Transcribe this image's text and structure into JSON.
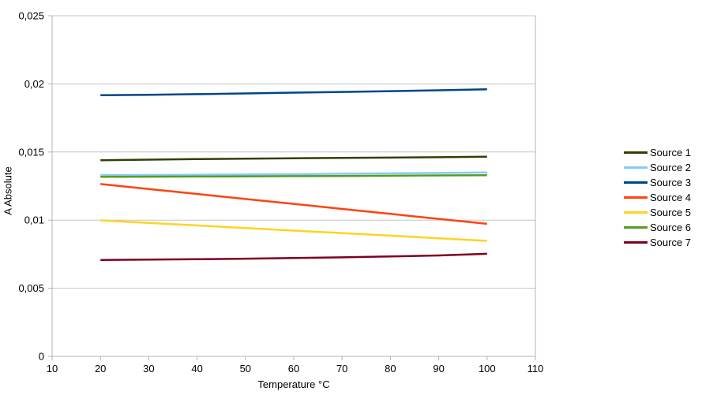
{
  "chart_data": {
    "type": "line",
    "xlabel": "Temperature °C",
    "ylabel": "A Absolute",
    "xlim": [
      10,
      110
    ],
    "ylim": [
      0,
      0.025
    ],
    "x_ticks": {
      "values": [
        10,
        20,
        30,
        40,
        50,
        60,
        70,
        80,
        90,
        100,
        110
      ],
      "labels": [
        "10",
        "20",
        "30",
        "40",
        "50",
        "60",
        "70",
        "80",
        "90",
        "100",
        "110"
      ]
    },
    "y_ticks": {
      "values": [
        0,
        0.005,
        0.01,
        0.015,
        0.02,
        0.025
      ],
      "labels": [
        "0",
        "0,005",
        "0,01",
        "0,015",
        "0,02",
        "0,025"
      ]
    },
    "grid": "horizontal-only",
    "legend_position": "right",
    "decimal_separator": ",",
    "x": [
      20,
      30,
      40,
      50,
      60,
      70,
      80,
      90,
      100
    ],
    "series": [
      {
        "name": "Source 1",
        "color": "#314004",
        "values": [
          0.0144,
          0.01444,
          0.01448,
          0.01451,
          0.01454,
          0.01457,
          0.01459,
          0.01462,
          0.01466
        ]
      },
      {
        "name": "Source 2",
        "color": "#83caff",
        "values": [
          0.0133,
          0.01331,
          0.01333,
          0.01335,
          0.01337,
          0.0134,
          0.01343,
          0.01346,
          0.0135
        ]
      },
      {
        "name": "Source 3",
        "color": "#004586",
        "values": [
          0.01917,
          0.0192,
          0.01925,
          0.0193,
          0.01936,
          0.01941,
          0.01947,
          0.01953,
          0.0196
        ]
      },
      {
        "name": "Source 4",
        "color": "#ff420e",
        "values": [
          0.01265,
          0.01228,
          0.01192,
          0.01155,
          0.01119,
          0.01082,
          0.01046,
          0.01009,
          0.00973
        ]
      },
      {
        "name": "Source 5",
        "color": "#ffd320",
        "values": [
          0.00998,
          0.00979,
          0.00961,
          0.00942,
          0.00923,
          0.00905,
          0.00886,
          0.00867,
          0.00848
        ]
      },
      {
        "name": "Source 6",
        "color": "#579d1c",
        "values": [
          0.01318,
          0.01319,
          0.0132,
          0.01321,
          0.01323,
          0.01324,
          0.01326,
          0.01328,
          0.0133
        ]
      },
      {
        "name": "Source 7",
        "color": "#7e0021",
        "values": [
          0.00708,
          0.0071,
          0.00713,
          0.00717,
          0.00722,
          0.00727,
          0.00733,
          0.00741,
          0.00753
        ]
      }
    ],
    "colors": {
      "gridline": "#c6c6c6",
      "axis": "#b3b3b3",
      "text": "#000000",
      "background": "#ffffff"
    }
  }
}
